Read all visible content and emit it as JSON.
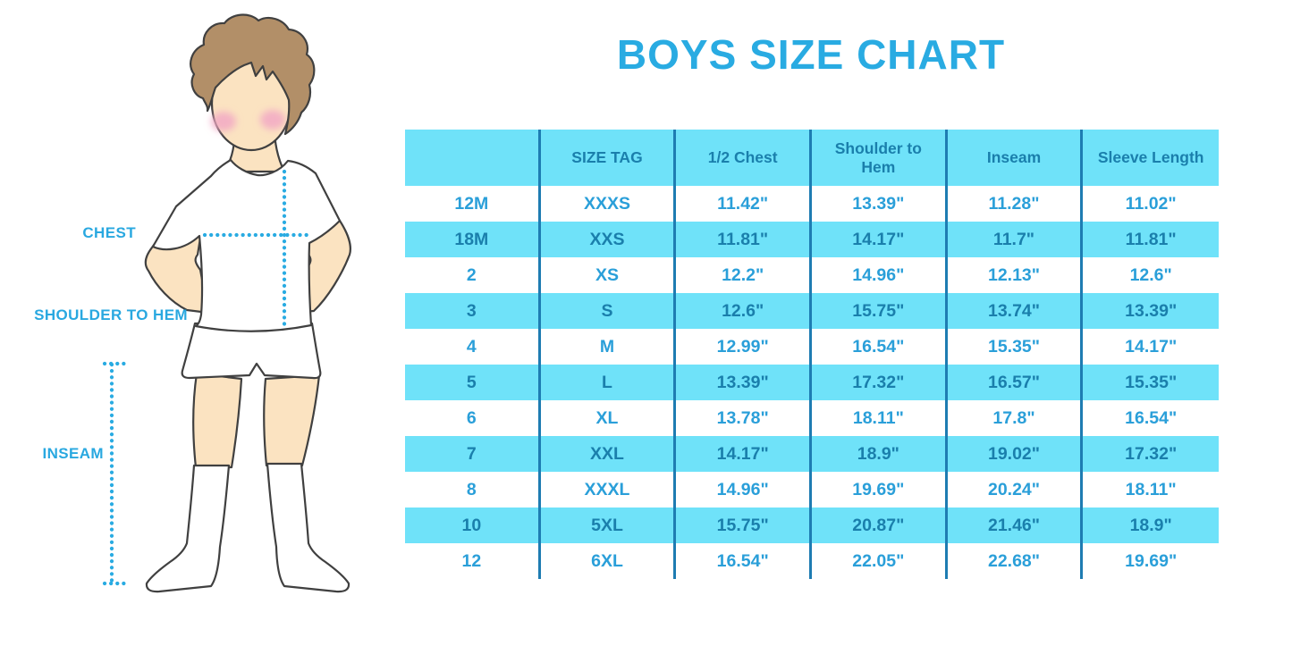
{
  "title": "BOYS SIZE CHART",
  "figure": {
    "description": "cartoon boy in white t-shirt, shorts and knee socks with dotted measurement guides",
    "chest_label": "CHEST",
    "shoulder_to_hem_label": "SHOULDER TO HEM",
    "inseam_label": "INSEAM"
  },
  "colors": {
    "accent_blue": "#29ABE2",
    "table_cyan": "#6FE2F9",
    "table_divider_blue": "#1E7CB2",
    "text_on_cyan": "#1A7FAC",
    "text_on_white": "#2A9FD9",
    "skin": "#FBE3C1",
    "hair": "#B28F68",
    "cheek_pink": "#F2A9C4",
    "outline": "#404040"
  },
  "chart_data": {
    "type": "table",
    "title": "BOYS SIZE CHART",
    "columns": [
      "",
      "SIZE TAG",
      "1/2 Chest",
      "Shoulder to Hem",
      "Inseam",
      "Sleeve Length"
    ],
    "rows": [
      [
        "12M",
        "XXXS",
        "11.42\"",
        "13.39\"",
        "11.28\"",
        "11.02\""
      ],
      [
        "18M",
        "XXS",
        "11.81\"",
        "14.17\"",
        "11.7\"",
        "11.81\""
      ],
      [
        "2",
        "XS",
        "12.2\"",
        "14.96\"",
        "12.13\"",
        "12.6\""
      ],
      [
        "3",
        "S",
        "12.6\"",
        "15.75\"",
        "13.74\"",
        "13.39\""
      ],
      [
        "4",
        "M",
        "12.99\"",
        "16.54\"",
        "15.35\"",
        "14.17\""
      ],
      [
        "5",
        "L",
        "13.39\"",
        "17.32\"",
        "16.57\"",
        "15.35\""
      ],
      [
        "6",
        "XL",
        "13.78\"",
        "18.11\"",
        "17.8\"",
        "16.54\""
      ],
      [
        "7",
        "XXL",
        "14.17\"",
        "18.9\"",
        "19.02\"",
        "17.32\""
      ],
      [
        "8",
        "XXXL",
        "14.96\"",
        "19.69\"",
        "20.24\"",
        "18.11\""
      ],
      [
        "10",
        "5XL",
        "15.75\"",
        "20.87\"",
        "21.46\"",
        "18.9\""
      ],
      [
        "12",
        "6XL",
        "16.54\"",
        "22.05\"",
        "22.68\"",
        "19.69\""
      ]
    ],
    "layout_hints": {
      "header_background": "cyan",
      "row_striping": "alternating white and cyan starting with white",
      "first_column_header_empty": true,
      "column_dividers": "vertical blue lines, no horizontal lines, no outer border"
    }
  }
}
